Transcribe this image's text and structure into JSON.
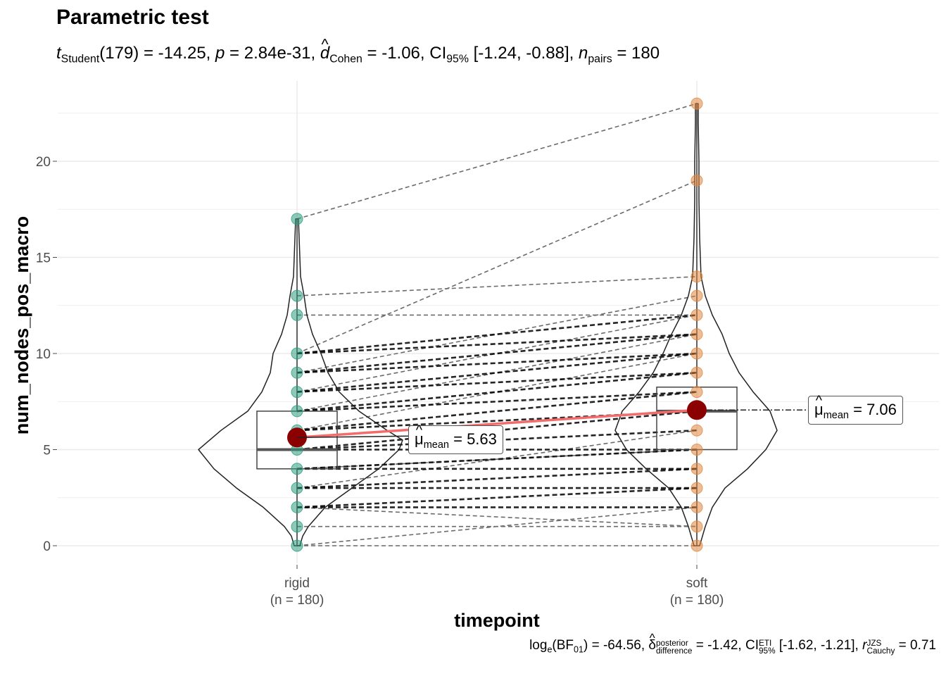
{
  "title": "Parametric test",
  "subtitle": {
    "t_symbol": "t",
    "t_sub": "Student",
    "df": "(179)",
    "t_value": " = -14.25, ",
    "p_symbol": "p",
    "p_value": " = 2.84e-31, ",
    "d_symbol": "d",
    "d_sub": "Cohen",
    "d_value": " = -1.06, CI",
    "ci_sub": "95%",
    "ci_value": " [-1.24, -0.88], ",
    "n_symbol": "n",
    "n_sub": "pairs",
    "n_value": " = 180"
  },
  "caption": {
    "bf_prefix": "log",
    "bf_e": "e",
    "bf_mid": "(BF",
    "bf_sub": "01",
    "bf_value": ") = -64.56, ",
    "delta_symbol": "δ",
    "delta_sup": "posterior",
    "delta_sub": "difference",
    "delta_value": " = -1.42, CI",
    "ci_sup": "ETI",
    "ci_sub": "95%",
    "ci_value": " [-1.62, -1.21], ",
    "r_symbol": "r",
    "r_sup": "JZS",
    "r_sub": "Cauchy",
    "r_value": " = 0.71"
  },
  "hat_symbol": "^",
  "colors": {
    "rigid": "#2E9C7E",
    "soft": "#E0873E",
    "mean_point": "#8B0000",
    "mean_line": "#F36B6B",
    "pair_line": "#000000",
    "grid": "#EBEBEB"
  },
  "chart_data": {
    "type": "violin-box-paired",
    "xlabel": "timepoint",
    "ylabel": "num_nodes_pos_macro",
    "ylim": [
      0,
      23
    ],
    "yticks": [
      0,
      5,
      10,
      15,
      20
    ],
    "grid": true,
    "categories": [
      {
        "name": "rigid",
        "n_label": "(n = 180)",
        "color": "#2E9C7E",
        "values": [
          0,
          1,
          2,
          3,
          4,
          5,
          6,
          7,
          8,
          9,
          10,
          12,
          13,
          17
        ],
        "box": {
          "q1": 4,
          "median": 5,
          "q3": 7,
          "whisker_low": 0,
          "whisker_high": 17
        },
        "mean": 5.63,
        "mean_label": " = 5.63",
        "mean_sub": "mean",
        "mean_symbol": "μ"
      },
      {
        "name": "soft",
        "n_label": "(n = 180)",
        "color": "#E0873E",
        "values": [
          0,
          1,
          2,
          3,
          4,
          5,
          6,
          7,
          8,
          9,
          10,
          11,
          12,
          13,
          14,
          19,
          23
        ],
        "box": {
          "q1": 5,
          "median": 7,
          "q3": 8.25,
          "whisker_low": 0,
          "whisker_high": 23
        },
        "mean": 7.06,
        "mean_label": " = 7.06",
        "mean_sub": "mean",
        "mean_symbol": "μ"
      }
    ],
    "pairs_dark": [
      [
        2,
        2
      ],
      [
        2,
        3
      ],
      [
        3,
        3
      ],
      [
        3,
        4
      ],
      [
        4,
        4
      ],
      [
        4,
        5
      ],
      [
        5,
        5
      ],
      [
        5,
        6
      ],
      [
        5,
        7
      ],
      [
        6,
        7
      ],
      [
        6,
        8
      ],
      [
        7,
        8
      ],
      [
        7,
        9
      ],
      [
        8,
        9
      ],
      [
        8,
        10
      ],
      [
        9,
        10
      ],
      [
        9,
        11
      ],
      [
        10,
        11
      ],
      [
        10,
        12
      ]
    ],
    "pairs_gray": [
      [
        0,
        0
      ],
      [
        0,
        2
      ],
      [
        1,
        1
      ],
      [
        2,
        1
      ],
      [
        3,
        6
      ],
      [
        4,
        5
      ],
      [
        6,
        10
      ],
      [
        7,
        11
      ],
      [
        8,
        12
      ],
      [
        9,
        13
      ],
      [
        10,
        19
      ],
      [
        12,
        12
      ],
      [
        13,
        14
      ],
      [
        17,
        23
      ]
    ]
  }
}
